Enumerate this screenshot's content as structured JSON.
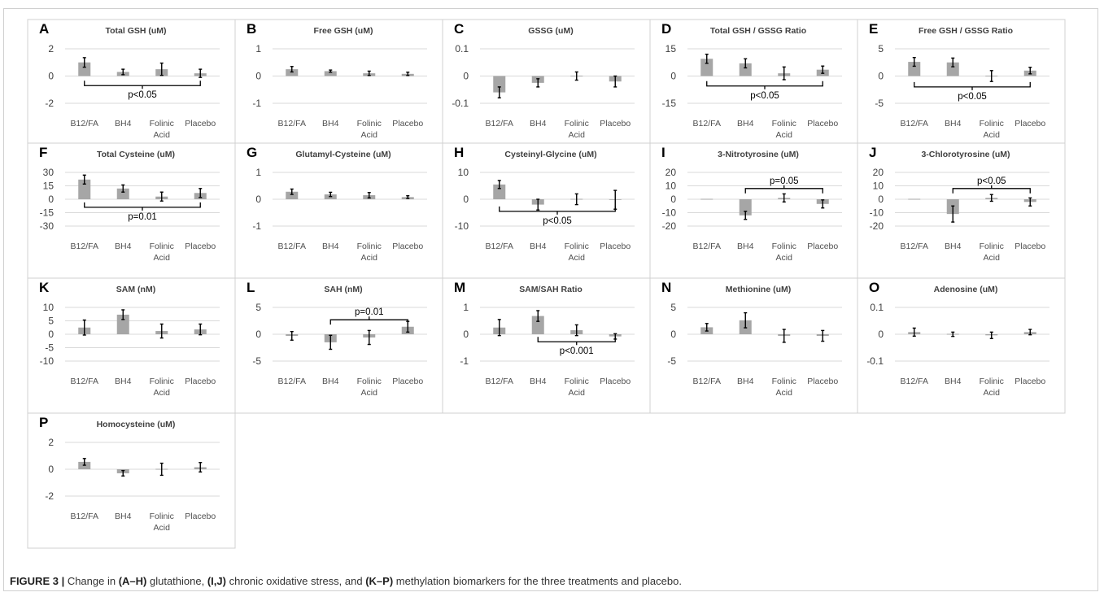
{
  "caption": {
    "label": "FIGURE 3 |",
    "parts": [
      {
        "text": " Change in ",
        "bold": false
      },
      {
        "text": "(A–H)",
        "bold": true
      },
      {
        "text": " glutathione, ",
        "bold": false
      },
      {
        "text": "(I,J)",
        "bold": true
      },
      {
        "text": " chronic oxidative stress, and ",
        "bold": false
      },
      {
        "text": "(K–P)",
        "bold": true
      },
      {
        "text": " methylation biomarkers for the three treatments and placebo.",
        "bold": false
      }
    ]
  },
  "chart_data": [
    {
      "letter": "A",
      "title": "Total GSH (uM)",
      "type": "bar",
      "categories": [
        "B12/FA",
        "BH4",
        "Folinic Acid",
        "Placebo"
      ],
      "values": [
        1.0,
        0.3,
        0.5,
        0.2
      ],
      "errors": [
        0.35,
        0.2,
        0.45,
        0.3
      ],
      "ylim": [
        -2,
        2
      ],
      "ticks": [
        -2,
        0,
        2
      ],
      "annotations": [
        {
          "label": "p<0.05",
          "from": 0,
          "to": 3,
          "y": -0.7,
          "dir": "down"
        }
      ]
    },
    {
      "letter": "B",
      "title": "Free GSH (uM)",
      "type": "bar",
      "categories": [
        "B12/FA",
        "BH4",
        "Folinic Acid",
        "Placebo"
      ],
      "values": [
        0.25,
        0.18,
        0.1,
        0.08
      ],
      "errors": [
        0.1,
        0.04,
        0.08,
        0.06
      ],
      "ylim": [
        -1,
        1
      ],
      "ticks": [
        -1,
        0,
        1
      ],
      "annotations": []
    },
    {
      "letter": "C",
      "title": "GSSG (uM)",
      "type": "bar",
      "categories": [
        "B12/FA",
        "BH4",
        "Folinic Acid",
        "Placebo"
      ],
      "values": [
        -0.06,
        -0.025,
        0.0,
        -0.02
      ],
      "errors": [
        0.02,
        0.015,
        0.015,
        0.02
      ],
      "ylim": [
        -0.1,
        0.1
      ],
      "ticks": [
        -0.1,
        0,
        0.1
      ],
      "annotations": []
    },
    {
      "letter": "D",
      "title": "Total GSH / GSSG Ratio",
      "type": "bar",
      "categories": [
        "B12/FA",
        "BH4",
        "Folinic Acid",
        "Placebo"
      ],
      "values": [
        9.5,
        7.0,
        1.5,
        3.5
      ],
      "errors": [
        2.5,
        2.5,
        3.5,
        2.0
      ],
      "ylim": [
        -15,
        15
      ],
      "ticks": [
        -15,
        0,
        15
      ],
      "annotations": [
        {
          "label": "p<0.05",
          "from": 0,
          "to": 3,
          "y": -5.5,
          "dir": "down"
        }
      ]
    },
    {
      "letter": "E",
      "title": "Free GSH / GSSG Ratio",
      "type": "bar",
      "categories": [
        "B12/FA",
        "BH4",
        "Folinic Acid",
        "Placebo"
      ],
      "values": [
        2.6,
        2.5,
        0.0,
        1.0
      ],
      "errors": [
        0.8,
        0.8,
        1.0,
        0.6
      ],
      "ylim": [
        -5,
        5
      ],
      "ticks": [
        -5,
        0,
        5
      ],
      "annotations": [
        {
          "label": "p<0.05",
          "from": 0,
          "to": 3,
          "y": -2.0,
          "dir": "down"
        }
      ]
    },
    {
      "letter": "F",
      "title": "Total Cysteine (uM)",
      "type": "bar",
      "categories": [
        "B12/FA",
        "BH4",
        "Folinic Acid",
        "Placebo"
      ],
      "values": [
        22,
        12,
        3,
        7
      ],
      "errors": [
        5,
        4,
        5,
        5
      ],
      "ylim": [
        -30,
        30
      ],
      "ticks": [
        -30,
        -15,
        0,
        15,
        30
      ],
      "annotations": [
        {
          "label": "p=0.01",
          "from": 0,
          "to": 3,
          "y": -9,
          "dir": "down"
        }
      ]
    },
    {
      "letter": "G",
      "title": "Glutamyl-Cysteine (uM)",
      "type": "bar",
      "categories": [
        "B12/FA",
        "BH4",
        "Folinic Acid",
        "Placebo"
      ],
      "values": [
        0.28,
        0.18,
        0.15,
        0.08
      ],
      "errors": [
        0.1,
        0.08,
        0.1,
        0.05
      ],
      "ylim": [
        -1,
        1
      ],
      "ticks": [
        -1,
        0,
        1
      ],
      "annotations": []
    },
    {
      "letter": "H",
      "title": "Cysteinyl-Glycine (uM)",
      "type": "bar",
      "categories": [
        "B12/FA",
        "BH4",
        "Folinic Acid",
        "Placebo"
      ],
      "values": [
        5.5,
        -2.0,
        0.0,
        -0.2
      ],
      "errors": [
        1.5,
        2.0,
        2.0,
        3.5
      ],
      "ylim": [
        -10,
        10
      ],
      "ticks": [
        -10,
        0,
        10
      ],
      "annotations": [
        {
          "label": "p<0.05",
          "from": 0,
          "to": 3,
          "y": -4.5,
          "dir": "down"
        }
      ]
    },
    {
      "letter": "I",
      "title": "3-Nitrotyrosine (uM)",
      "type": "bar",
      "categories": [
        "B12/FA",
        "BH4",
        "Folinic Acid",
        "Placebo"
      ],
      "values": [
        0,
        -12,
        1,
        -3.5
      ],
      "errors": [
        0,
        3,
        3,
        3
      ],
      "ylim": [
        -20,
        20
      ],
      "ticks": [
        -20,
        -10,
        0,
        10,
        20
      ],
      "annotations": [
        {
          "label": "p=0.05",
          "from": 1,
          "to": 3,
          "y": 8,
          "dir": "up"
        }
      ]
    },
    {
      "letter": "J",
      "title": "3-Chlorotyrosine (uM)",
      "type": "bar",
      "categories": [
        "B12/FA",
        "BH4",
        "Folinic Acid",
        "Placebo"
      ],
      "values": [
        0,
        -11,
        1,
        -2
      ],
      "errors": [
        0,
        6,
        2.5,
        3
      ],
      "ylim": [
        -20,
        20
      ],
      "ticks": [
        -20,
        -10,
        0,
        10,
        20
      ],
      "annotations": [
        {
          "label": "p<0.05",
          "from": 1,
          "to": 3,
          "y": 8,
          "dir": "up"
        }
      ]
    },
    {
      "letter": "K",
      "title": "SAM (nM)",
      "type": "bar",
      "categories": [
        "B12/FA",
        "BH4",
        "Folinic Acid",
        "Placebo"
      ],
      "values": [
        2.5,
        7.3,
        1.2,
        1.8
      ],
      "errors": [
        2.8,
        1.8,
        2.6,
        2.0
      ],
      "ylim": [
        -10,
        10
      ],
      "ticks": [
        -10,
        -5,
        0,
        5,
        10
      ],
      "annotations": []
    },
    {
      "letter": "L",
      "title": "SAH (nM)",
      "type": "bar",
      "categories": [
        "B12/FA",
        "BH4",
        "Folinic Acid",
        "Placebo"
      ],
      "values": [
        -0.3,
        -1.5,
        -0.6,
        1.4
      ],
      "errors": [
        0.8,
        1.3,
        1.3,
        1.0
      ],
      "ylim": [
        -5,
        5
      ],
      "ticks": [
        -5,
        0,
        5
      ],
      "annotations": [
        {
          "label": "p=0.01",
          "from": 1,
          "to": 3,
          "y": 2.7,
          "dir": "up"
        }
      ]
    },
    {
      "letter": "M",
      "title": "SAM/SAH Ratio",
      "type": "bar",
      "categories": [
        "B12/FA",
        "BH4",
        "Folinic Acid",
        "Placebo"
      ],
      "values": [
        0.25,
        0.68,
        0.15,
        -0.08
      ],
      "errors": [
        0.3,
        0.2,
        0.2,
        0.1
      ],
      "ylim": [
        -1,
        1
      ],
      "ticks": [
        -1,
        0,
        1
      ],
      "annotations": [
        {
          "label": "p<0.001",
          "from": 1,
          "to": 3,
          "y": -0.28,
          "dir": "down"
        }
      ]
    },
    {
      "letter": "N",
      "title": "Methionine (uM)",
      "type": "bar",
      "categories": [
        "B12/FA",
        "BH4",
        "Folinic Acid",
        "Placebo"
      ],
      "values": [
        1.3,
        2.6,
        -0.3,
        -0.3
      ],
      "errors": [
        0.7,
        1.4,
        1.2,
        1.0
      ],
      "ylim": [
        -5,
        5
      ],
      "ticks": [
        -5,
        0,
        5
      ],
      "annotations": []
    },
    {
      "letter": "O",
      "title": "Adenosine (uM)",
      "type": "bar",
      "categories": [
        "B12/FA",
        "BH4",
        "Folinic Acid",
        "Placebo"
      ],
      "values": [
        0.008,
        0.0,
        -0.004,
        0.008
      ],
      "errors": [
        0.015,
        0.008,
        0.012,
        0.01
      ],
      "ylim": [
        -0.1,
        0.1
      ],
      "ticks": [
        -0.1,
        0,
        0.1
      ],
      "annotations": []
    },
    {
      "letter": "P",
      "title": "Homocysteine (uM)",
      "type": "bar",
      "categories": [
        "B12/FA",
        "BH4",
        "Folinic Acid",
        "Placebo"
      ],
      "values": [
        0.55,
        -0.3,
        0.0,
        0.15
      ],
      "errors": [
        0.25,
        0.2,
        0.45,
        0.35
      ],
      "ylim": [
        -2,
        2
      ],
      "ticks": [
        -2,
        0,
        2
      ],
      "annotations": []
    }
  ]
}
